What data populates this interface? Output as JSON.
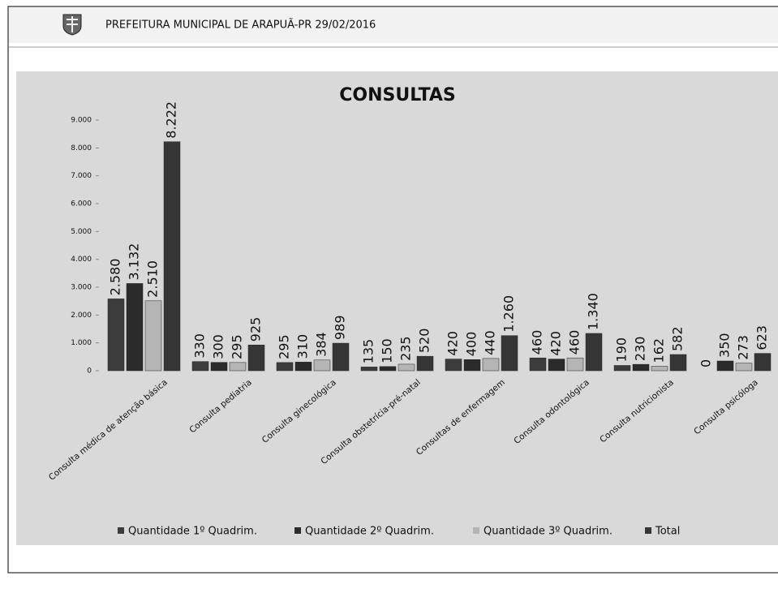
{
  "header": {
    "title": "PREFEITURA MUNICIPAL DE ARAPUÃ-PR 29/02/2016"
  },
  "chart_data": {
    "type": "bar",
    "title": "CONSULTAS",
    "categories": [
      "Consulta médica de atenção básica",
      "Consulta pediatria",
      "Consulta ginecológica",
      "Consulta obstetrícia-pré-natal",
      "Consultas de enfermagem",
      "Consulta odontológica",
      "Consulta nutricionista",
      "Consulta psicóloga"
    ],
    "series": [
      {
        "name": "Quantidade 1º Quadrim.",
        "color": "#3c3c3c",
        "values": [
          2580,
          330,
          295,
          135,
          420,
          460,
          190,
          0
        ],
        "value_labels": [
          "2.580",
          "330",
          "295",
          "135",
          "420",
          "460",
          "190",
          "0"
        ]
      },
      {
        "name": "Quantidade 2º Quadrim.",
        "color": "#2b2b2b",
        "values": [
          3132,
          300,
          310,
          150,
          400,
          420,
          230,
          350
        ],
        "value_labels": [
          "3.132",
          "300",
          "310",
          "150",
          "400",
          "420",
          "230",
          "350"
        ]
      },
      {
        "name": "Quantidade 3º Quadrim.",
        "color": "#b5b5b5",
        "values": [
          2510,
          295,
          384,
          235,
          440,
          460,
          162,
          273
        ],
        "value_labels": [
          "2.510",
          "295",
          "384",
          "235",
          "440",
          "460",
          "162",
          "273"
        ]
      },
      {
        "name": "Total",
        "color": "#363636",
        "values": [
          8222,
          925,
          989,
          520,
          1260,
          1340,
          582,
          623
        ],
        "value_labels": [
          "8.222",
          "925",
          "989",
          "520",
          "1.260",
          "1.340",
          "582",
          "623"
        ]
      }
    ],
    "ylim": [
      0,
      9000
    ],
    "yticks": [
      0,
      {
        "value": 1000,
        "label": "1.000"
      },
      {
        "value": 2000,
        "label": "2.000"
      },
      {
        "value": 3000,
        "label": "3.000"
      },
      {
        "value": 4000,
        "label": "4.000"
      },
      {
        "value": 5000,
        "label": "5.000"
      },
      {
        "value": 6000,
        "label": "6.000"
      },
      {
        "value": 7000,
        "label": "7.000"
      },
      {
        "value": 8000,
        "label": "8.000"
      },
      {
        "value": 9000,
        "label": "9.000"
      }
    ],
    "legend": "bottom"
  }
}
